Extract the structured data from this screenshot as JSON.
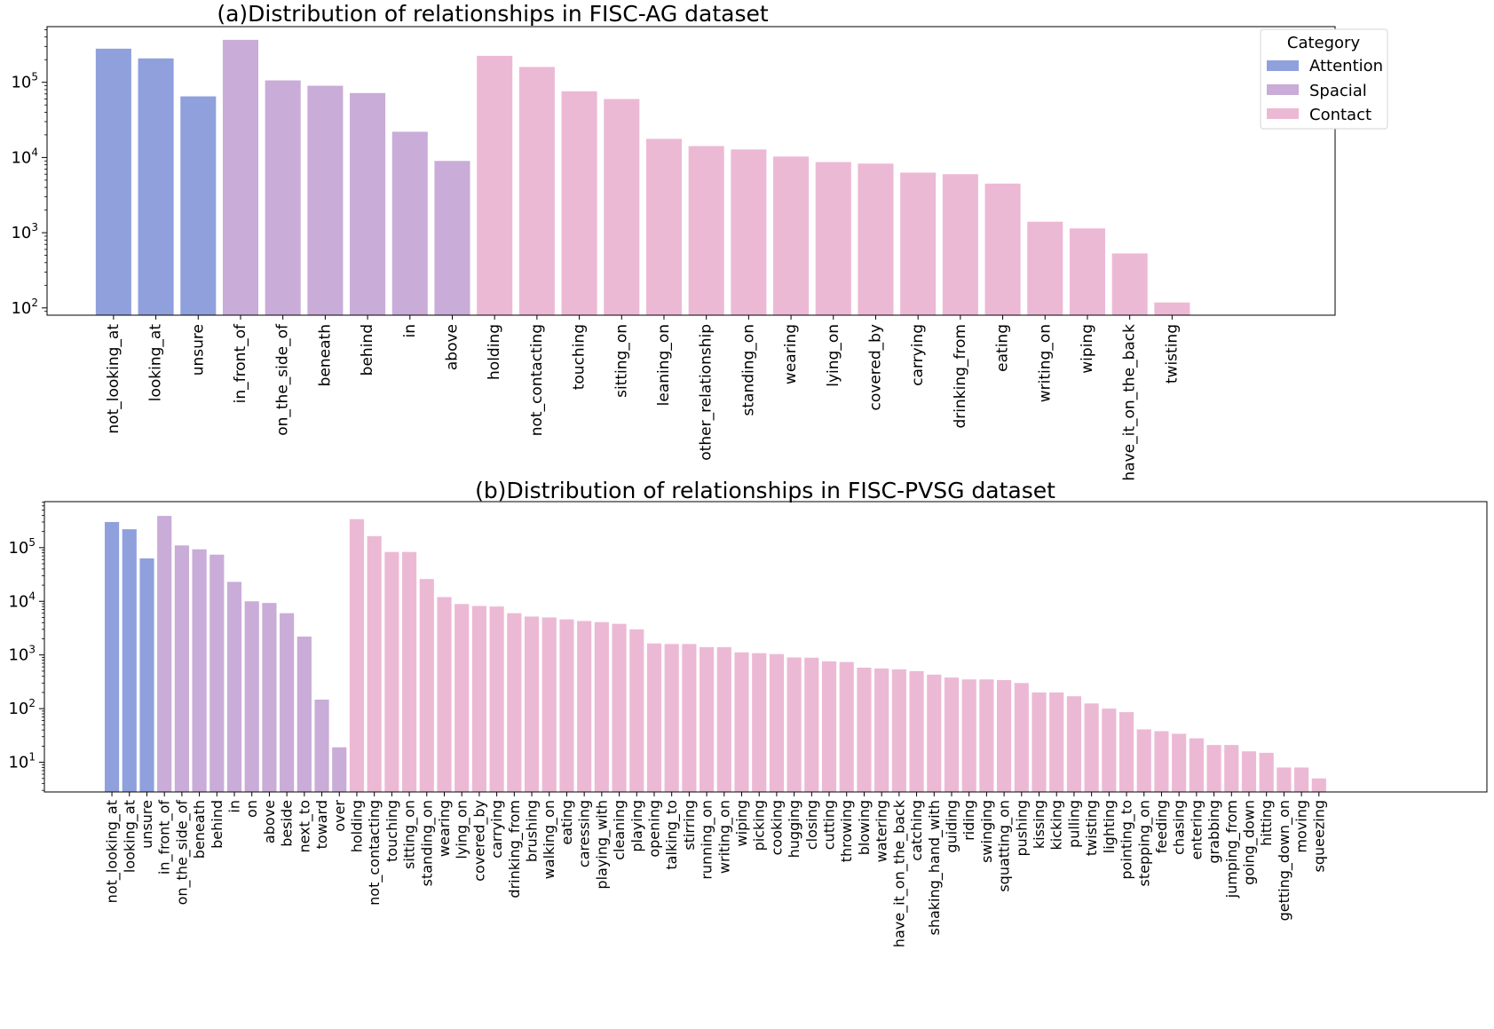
{
  "colors": {
    "Attention": "#8fa0dd",
    "Spacial": "#c9acd7",
    "Contact": "#ecb9d5"
  },
  "legend": {
    "title": "Category",
    "entries": [
      "Attention",
      "Spacial",
      "Contact"
    ],
    "placement": "outside-top-right"
  },
  "chart_data": [
    {
      "type": "bar",
      "title": "(a)Distribution of relationships in FISC-AG dataset",
      "yscale": "log",
      "ylim": [
        80,
        550000
      ],
      "yticks": [
        100,
        1000,
        10000,
        100000
      ],
      "ytick_labels": [
        {
          "base": "10",
          "exp": "2"
        },
        {
          "base": "10",
          "exp": "3"
        },
        {
          "base": "10",
          "exp": "4"
        },
        {
          "base": "10",
          "exp": "5"
        }
      ],
      "grid": false,
      "categories": [
        "not_looking_at",
        "looking_at",
        "unsure",
        "in_front_of",
        "on_the_side_of",
        "beneath",
        "behind",
        "in",
        "above",
        "holding",
        "not_contacting",
        "touching",
        "sitting_on",
        "leaning_on",
        "other_relationship",
        "standing_on",
        "wearing",
        "lying_on",
        "covered_by",
        "carrying",
        "drinking_from",
        "eating",
        "writing_on",
        "wiping",
        "have_it_on_the_back",
        "twisting"
      ],
      "groups": [
        "Attention",
        "Attention",
        "Attention",
        "Spacial",
        "Spacial",
        "Spacial",
        "Spacial",
        "Spacial",
        "Spacial",
        "Contact",
        "Contact",
        "Contact",
        "Contact",
        "Contact",
        "Contact",
        "Contact",
        "Contact",
        "Contact",
        "Contact",
        "Contact",
        "Contact",
        "Contact",
        "Contact",
        "Contact",
        "Contact",
        "Contact"
      ],
      "values": [
        280000,
        208000,
        65000,
        367000,
        106000,
        90000,
        72000,
        22000,
        9000,
        225000,
        160000,
        76000,
        60000,
        17700,
        14200,
        12800,
        10300,
        8700,
        8300,
        6300,
        6000,
        4500,
        1400,
        1140,
        530,
        118
      ]
    },
    {
      "type": "bar",
      "title": "(b)Distribution of relationships in FISC-PVSG dataset",
      "yscale": "log",
      "ylim": [
        2.8,
        720000
      ],
      "yticks": [
        10,
        100,
        1000,
        10000,
        100000
      ],
      "ytick_labels": [
        {
          "base": "10",
          "exp": "1"
        },
        {
          "base": "10",
          "exp": "2"
        },
        {
          "base": "10",
          "exp": "3"
        },
        {
          "base": "10",
          "exp": "4"
        },
        {
          "base": "10",
          "exp": "5"
        }
      ],
      "grid": false,
      "categories": [
        "not_looking_at",
        "looking_at",
        "unsure",
        "in_front_of",
        "on_the_side_of",
        "beneath",
        "behind",
        "in",
        "on",
        "above",
        "beside",
        "next_to",
        "toward",
        "over",
        "holding",
        "not_contacting",
        "touching",
        "sitting_on",
        "standing_on",
        "wearing",
        "lying_on",
        "covered_by",
        "carrying",
        "drinking_from",
        "brushing",
        "walking_on",
        "eating",
        "caressing",
        "playing_with",
        "cleaning",
        "playing",
        "opening",
        "talking_to",
        "stirring",
        "running_on",
        "writing_on",
        "wiping",
        "picking",
        "cooking",
        "hugging",
        "closing",
        "cutting",
        "throwing",
        "blowing",
        "watering",
        "have_it_on_the_back",
        "catching",
        "shaking_hand_with",
        "guiding",
        "riding",
        "swinging",
        "squatting_on",
        "pushing",
        "kissing",
        "kicking",
        "pulling",
        "twisting",
        "lighting",
        "pointing_to",
        "stepping_on",
        "feeding",
        "chasing",
        "entering",
        "grabbing",
        "jumping_from",
        "going_down",
        "hitting",
        "getting_down_on",
        "moving",
        "squeezing"
      ],
      "groups": [
        "Attention",
        "Attention",
        "Attention",
        "Spacial",
        "Spacial",
        "Spacial",
        "Spacial",
        "Spacial",
        "Spacial",
        "Spacial",
        "Spacial",
        "Spacial",
        "Spacial",
        "Spacial",
        "Contact",
        "Contact",
        "Contact",
        "Contact",
        "Contact",
        "Contact",
        "Contact",
        "Contact",
        "Contact",
        "Contact",
        "Contact",
        "Contact",
        "Contact",
        "Contact",
        "Contact",
        "Contact",
        "Contact",
        "Contact",
        "Contact",
        "Contact",
        "Contact",
        "Contact",
        "Contact",
        "Contact",
        "Contact",
        "Contact",
        "Contact",
        "Contact",
        "Contact",
        "Contact",
        "Contact",
        "Contact",
        "Contact",
        "Contact",
        "Contact",
        "Contact",
        "Contact",
        "Contact",
        "Contact",
        "Contact",
        "Contact",
        "Contact",
        "Contact",
        "Contact",
        "Contact",
        "Contact",
        "Contact",
        "Contact",
        "Contact",
        "Contact",
        "Contact",
        "Contact",
        "Contact",
        "Contact",
        "Contact",
        "Contact"
      ],
      "values": [
        300000,
        220000,
        63000,
        390000,
        110000,
        93000,
        74000,
        23000,
        10000,
        9300,
        6000,
        2200,
        147,
        19,
        340000,
        164000,
        83000,
        83000,
        26000,
        12000,
        8900,
        8200,
        8000,
        6000,
        5200,
        5000,
        4600,
        4300,
        4100,
        3800,
        3000,
        1640,
        1600,
        1600,
        1400,
        1400,
        1120,
        1080,
        1040,
        900,
        890,
        760,
        740,
        580,
        560,
        540,
        500,
        430,
        380,
        350,
        350,
        340,
        300,
        200,
        200,
        170,
        125,
        100,
        86,
        41,
        38,
        34,
        28,
        21,
        21,
        16,
        15,
        8,
        8,
        5
      ]
    }
  ]
}
